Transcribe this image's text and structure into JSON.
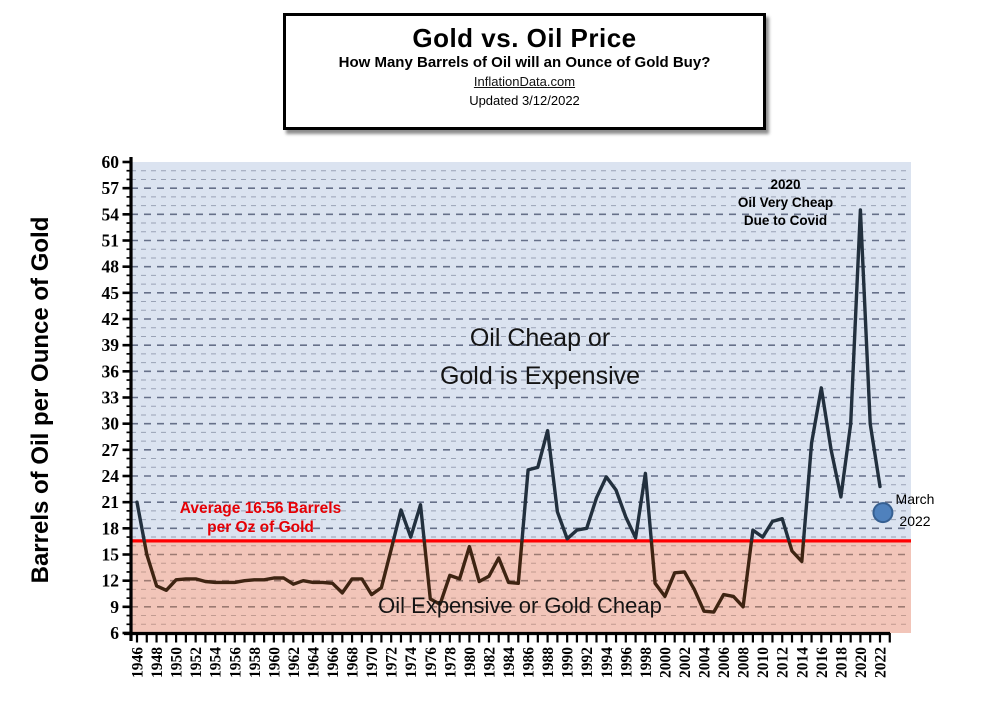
{
  "header": {
    "title": "Gold vs. Oil Price",
    "subtitle": "How Many Barrels of Oil will an Ounce of Gold Buy?",
    "source_link": "InflationData.com",
    "updated": "Updated  3/12/2022"
  },
  "annotations": {
    "avg_line1": "Average 16.56 Barrels",
    "avg_line2": "per Oz of Gold",
    "cheap_line1": "Oil Cheap or",
    "cheap_line2": "Gold is Expensive",
    "expensive": "Oil  Expensive or Gold Cheap",
    "covid_line1": "2020",
    "covid_line2": "Oil Very Cheap",
    "covid_line3": "Due to Covid",
    "march_line1": "March",
    "march_line2": "2022"
  },
  "chart_data": {
    "type": "line",
    "title": "Gold vs. Oil Price",
    "subtitle": "How Many Barrels of Oil will an Ounce of Gold Buy?",
    "ylabel": "Barrels of Oil per Ounce of Gold",
    "xlabel": "",
    "xlim": [
      1946,
      2022
    ],
    "ylim": [
      6,
      60
    ],
    "y_tick_step": 3,
    "y_minor_step": 1,
    "x_tick_step": 1,
    "x_label_step": 2,
    "grid": "horizontal dashed lines every 1 unit, darker every 3 units",
    "legend_position": "none",
    "series_name": "Barrels of oil per ounce of gold",
    "x": [
      1946,
      1947,
      1948,
      1949,
      1950,
      1951,
      1952,
      1953,
      1954,
      1955,
      1956,
      1957,
      1958,
      1959,
      1960,
      1961,
      1962,
      1963,
      1964,
      1965,
      1966,
      1967,
      1968,
      1969,
      1970,
      1971,
      1972,
      1973,
      1974,
      1975,
      1976,
      1977,
      1978,
      1979,
      1980,
      1981,
      1982,
      1983,
      1984,
      1985,
      1986,
      1987,
      1988,
      1989,
      1990,
      1991,
      1992,
      1993,
      1994,
      1995,
      1996,
      1997,
      1998,
      1999,
      2000,
      2001,
      2002,
      2003,
      2004,
      2005,
      2006,
      2007,
      2008,
      2009,
      2010,
      2011,
      2012,
      2013,
      2014,
      2015,
      2016,
      2017,
      2018,
      2019,
      2020,
      2021,
      2022
    ],
    "values": [
      21.0,
      15.0,
      11.4,
      10.9,
      12.1,
      12.2,
      12.2,
      11.9,
      11.8,
      11.8,
      11.8,
      12.0,
      12.1,
      12.1,
      12.3,
      12.3,
      11.6,
      12.0,
      11.8,
      11.8,
      11.7,
      10.6,
      12.2,
      12.2,
      10.4,
      11.2,
      15.6,
      20.1,
      17.0,
      20.7,
      9.9,
      9.3,
      12.6,
      12.2,
      15.9,
      11.9,
      12.5,
      14.6,
      11.8,
      11.7,
      24.7,
      25.0,
      29.2,
      19.9,
      16.8,
      17.8,
      18.0,
      21.5,
      23.9,
      22.4,
      19.3,
      16.9,
      24.3,
      11.7,
      10.2,
      12.9,
      13.0,
      11.0,
      8.5,
      8.4,
      10.4,
      10.2,
      9.0,
      17.8,
      17.0,
      18.8,
      19.1,
      15.4,
      14.2,
      27.8,
      34.1,
      27.0,
      21.6,
      30.0,
      54.5,
      30.0,
      22.8
    ],
    "average_line": {
      "value": 16.56,
      "color": "#ff0000",
      "label": "Average 16.56 Barrels per Oz of Gold"
    },
    "marker_point": {
      "x": 2022.3,
      "value": 19.8,
      "label": "March 2022",
      "fill": "#4f81bd",
      "stroke": "#365f91"
    },
    "regions": [
      {
        "where": "above average line",
        "label": "Oil Cheap or Gold is Expensive",
        "color": "#dbe3f0"
      },
      {
        "where": "below average line",
        "label": "Oil Expensive or Gold Cheap",
        "color": "#f2c5b9"
      }
    ],
    "line_color_above": "#22303e",
    "line_color_below": "#3e2412",
    "annotations_text": [
      "2020 Oil Very Cheap Due to Covid",
      "March 2022"
    ]
  }
}
